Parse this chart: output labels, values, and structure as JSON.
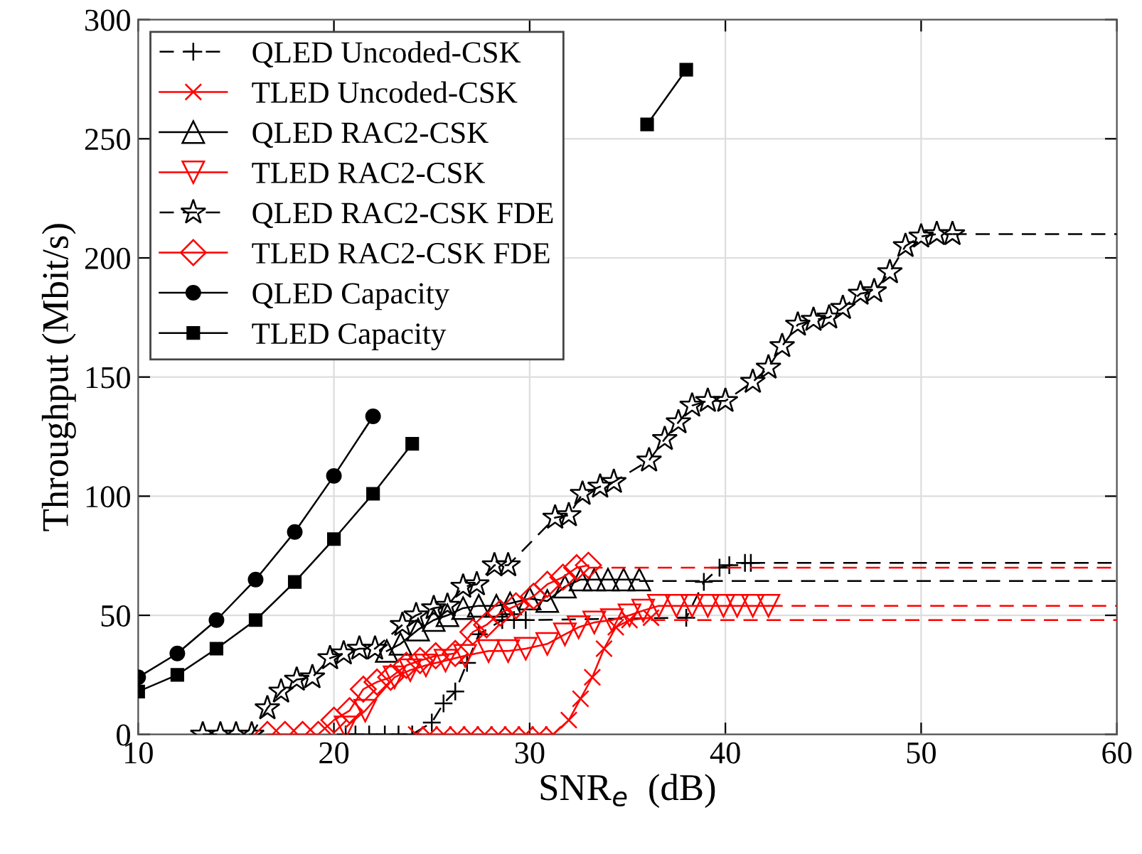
{
  "chart_data": {
    "type": "line",
    "xlabel": "SNR$_{e}$  (dB)",
    "ylabel": "Throughput (Mbit/s)",
    "xlim": [
      10,
      60
    ],
    "ylim": [
      0,
      300
    ],
    "xticks": [
      10,
      20,
      30,
      40,
      50,
      60
    ],
    "yticks": [
      0,
      50,
      100,
      150,
      200,
      250,
      300
    ],
    "grid": true,
    "legend": "top left",
    "series": [
      {
        "name": "QLED Uncoded-CSK",
        "color": "#000000",
        "marker": "plus",
        "line_style": "dashed",
        "x": [
          20.6,
          21.1,
          21.8,
          22.6,
          23.3,
          24.0,
          25.0,
          25.6,
          26.2,
          26.8,
          27.4,
          28.6,
          29.2,
          29.8,
          38.0,
          38.9,
          39.7,
          40.2,
          41.0,
          41.3
        ],
        "values": [
          0,
          0,
          0,
          0,
          0,
          0,
          5,
          13,
          18,
          30,
          42,
          48,
          48,
          48,
          49,
          64,
          70,
          71,
          72,
          72
        ]
      },
      {
        "name": "TLED Uncoded-CSK",
        "color": "#ff0000",
        "marker": "x",
        "line_style": "solid",
        "x": [
          24.2,
          24.9,
          25.6,
          26.3,
          27.0,
          27.7,
          28.4,
          29.1,
          29.8,
          30.5,
          31.2,
          32.0,
          32.6,
          33.2,
          33.8,
          34.4,
          35.1,
          36.2
        ],
        "values": [
          0,
          0,
          0,
          0,
          0,
          0,
          0,
          0,
          0,
          0,
          0,
          6,
          15,
          24,
          36,
          45,
          48,
          49
        ]
      },
      {
        "name": "QLED RAC2-CSK",
        "color": "#000000",
        "marker": "triangle",
        "line_style": "solid",
        "x": [
          22.7,
          23.4,
          24.3,
          25.1,
          25.8,
          26.6,
          27.4,
          28.3,
          29.0,
          30.0,
          30.9,
          31.8,
          32.6,
          33.3,
          34.0,
          34.8,
          35.6
        ],
        "values": [
          35,
          38,
          44,
          48,
          50,
          53,
          54,
          54,
          55,
          57,
          56,
          62,
          65,
          65,
          65,
          65,
          65
        ]
      },
      {
        "name": "TLED RAC2-CSK",
        "color": "#ff0000",
        "marker": "triangle_down",
        "line_style": "solid",
        "x": [
          20.6,
          21.6,
          23.1,
          23.9,
          24.7,
          25.7,
          26.7,
          27.9,
          28.9,
          29.8,
          30.9,
          31.8,
          32.5,
          33.3,
          34.2,
          35.1,
          35.8,
          36.6,
          37.5,
          38.3,
          39.1,
          39.9,
          40.6,
          41.4,
          42.2
        ],
        "values": [
          3,
          10,
          24,
          27,
          29,
          31,
          33,
          35,
          35,
          36,
          38,
          42,
          45,
          47,
          48,
          50,
          52,
          54,
          54,
          54,
          54,
          54,
          54,
          54,
          54
        ]
      },
      {
        "name": "QLED RAC2-CSK FDE",
        "color": "#000000",
        "marker": "star",
        "line_style": "dashed",
        "x": [
          13.3,
          14.2,
          15.0,
          15.8,
          16.6,
          17.3,
          18.1,
          18.9,
          19.8,
          20.5,
          21.3,
          22.1,
          23.5,
          24.2,
          25.1,
          25.8,
          26.6,
          27.3,
          28.2,
          28.9,
          31.3,
          32.0,
          32.7,
          33.6,
          34.3,
          36.1,
          36.9,
          37.6,
          38.3,
          39.1,
          40.0,
          41.4,
          42.2,
          42.9,
          43.7,
          44.5,
          45.3,
          46.0,
          46.9,
          47.6,
          48.4,
          49.2,
          50.0,
          50.8,
          51.6
        ],
        "values": [
          0,
          0,
          0,
          0,
          11,
          18,
          23,
          24,
          32,
          34,
          36,
          36,
          46,
          50,
          53,
          54,
          62,
          63,
          71,
          71,
          91,
          92,
          101,
          104,
          106,
          115,
          124,
          131,
          138,
          140,
          140,
          148,
          154,
          163,
          172,
          174,
          175,
          179,
          185,
          186,
          194,
          205,
          209,
          210,
          210
        ]
      },
      {
        "name": "TLED RAC2-CSK FDE",
        "color": "#ff0000",
        "marker": "diamond",
        "line_style": "solid",
        "x": [
          16.6,
          17.5,
          18.4,
          19.2,
          20.0,
          20.8,
          21.5,
          22.2,
          22.9,
          23.7,
          24.4,
          25.2,
          26.2,
          27.1,
          27.8,
          28.5,
          29.3,
          30.2,
          30.9,
          31.7,
          32.4,
          33.0
        ],
        "values": [
          0,
          0,
          0,
          0,
          6,
          10,
          19,
          22,
          24,
          29,
          31,
          33,
          34,
          43,
          46,
          51,
          54,
          58,
          63,
          66,
          70,
          71
        ]
      },
      {
        "name": "QLED Capacity",
        "color": "#000000",
        "marker": "circle",
        "line_style": "solid",
        "x": [
          10,
          12,
          14,
          16,
          18,
          20,
          22
        ],
        "values": [
          24,
          34,
          48,
          65,
          85,
          108.5,
          133.5
        ]
      },
      {
        "name": "TLED Capacity",
        "color": "#000000",
        "marker": "square",
        "line_style": "solid",
        "x": [
          10,
          12,
          14,
          16,
          18,
          20,
          22,
          24,
          26,
          28,
          30,
          32,
          34,
          36,
          38
        ],
        "values": [
          18,
          25,
          36,
          48,
          64,
          82,
          101,
          122,
          null,
          null,
          null,
          null,
          null,
          256,
          279
        ]
      },
      {
        "color": "#000000",
        "marker": "none",
        "line_style": "dashed",
        "x": [
          41.3,
          60
        ],
        "values": [
          72,
          72
        ]
      },
      {
        "color": "#ff0000",
        "marker": "none",
        "line_style": "dashed",
        "x": [
          36.2,
          60
        ],
        "values": [
          48,
          48
        ]
      },
      {
        "color": "#000000",
        "marker": "none",
        "line_style": "dashed",
        "x": [
          35.6,
          60
        ],
        "values": [
          64.4,
          64.4
        ]
      },
      {
        "color": "#ff0000",
        "marker": "none",
        "line_style": "dashed",
        "x": [
          42.2,
          60
        ],
        "values": [
          54,
          54
        ]
      },
      {
        "color": "#000000",
        "marker": "none",
        "line_style": "dashed",
        "x": [
          51.6,
          60
        ],
        "values": [
          210,
          210
        ]
      },
      {
        "color": "#ff0000",
        "marker": "none",
        "line_style": "dashed",
        "x": [
          33.0,
          60
        ],
        "values": [
          70,
          70
        ]
      }
    ]
  }
}
